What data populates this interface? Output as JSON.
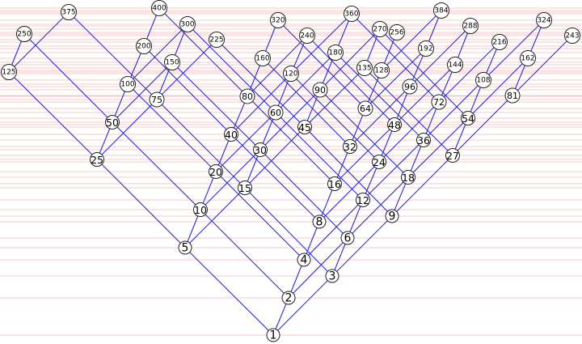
{
  "diagram": {
    "title": "",
    "colors": {
      "edge": "#2b2bd6",
      "grid": "#f2b8b8",
      "node_stroke": "#222222",
      "node_fill": "#ffffff"
    },
    "nodes": [
      {
        "label": "1"
      },
      {
        "label": "2"
      },
      {
        "label": "3"
      },
      {
        "label": "4"
      },
      {
        "label": "5"
      },
      {
        "label": "6"
      },
      {
        "label": "8"
      },
      {
        "label": "9"
      },
      {
        "label": "10"
      },
      {
        "label": "12"
      },
      {
        "label": "15"
      },
      {
        "label": "16"
      },
      {
        "label": "18"
      },
      {
        "label": "20"
      },
      {
        "label": "24"
      },
      {
        "label": "25"
      },
      {
        "label": "27"
      },
      {
        "label": "30"
      },
      {
        "label": "32"
      },
      {
        "label": "36"
      },
      {
        "label": "40"
      },
      {
        "label": "45"
      },
      {
        "label": "48"
      },
      {
        "label": "50"
      },
      {
        "label": "54"
      },
      {
        "label": "60"
      },
      {
        "label": "64"
      },
      {
        "label": "72"
      },
      {
        "label": "75"
      },
      {
        "label": "80"
      },
      {
        "label": "81"
      },
      {
        "label": "90"
      },
      {
        "label": "96"
      },
      {
        "label": "100"
      },
      {
        "label": "108"
      },
      {
        "label": "120"
      },
      {
        "label": "125"
      },
      {
        "label": "128"
      },
      {
        "label": "135"
      },
      {
        "label": "144"
      },
      {
        "label": "150"
      },
      {
        "label": "160"
      },
      {
        "label": "162"
      },
      {
        "label": "180"
      },
      {
        "label": "192"
      },
      {
        "label": "200"
      },
      {
        "label": "216"
      },
      {
        "label": "225"
      },
      {
        "label": "240"
      },
      {
        "label": "243"
      },
      {
        "label": "250"
      },
      {
        "label": "256"
      },
      {
        "label": "270"
      },
      {
        "label": "288"
      },
      {
        "label": "300"
      },
      {
        "label": "320"
      },
      {
        "label": "324"
      },
      {
        "label": "360"
      },
      {
        "label": "375"
      },
      {
        "label": "384"
      },
      {
        "label": "400"
      }
    ]
  }
}
